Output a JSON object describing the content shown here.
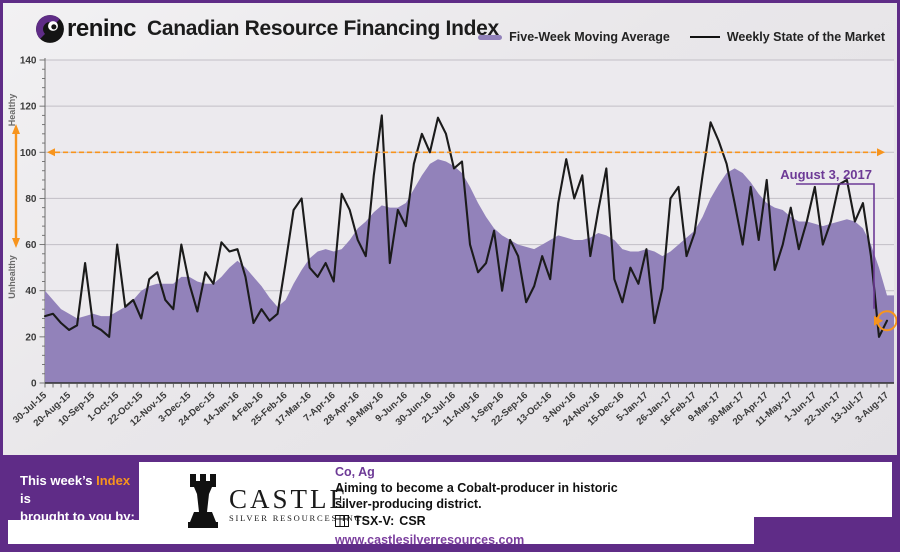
{
  "header": {
    "logo_text": "reninc",
    "title": "Canadian Resource Financing Index"
  },
  "legend": {
    "ma_label": "Five-Week Moving Average",
    "weekly_label": "Weekly State of the Market"
  },
  "axis": {
    "healthy_label": "Healthy",
    "unhealthy_label": "Unhealthy"
  },
  "annotation": {
    "label": "August 3, 2017"
  },
  "colors": {
    "brand_purple": "#5f2c87",
    "area_purple": "#9282ba",
    "line_black": "#1b1b1b",
    "accent_orange": "#f7941d",
    "annotation_purple": "#6d3a96"
  },
  "chart_data": {
    "type": "area+line",
    "title": "Oreninc Canadian Resource Financing Index",
    "ylim": [
      0,
      140
    ],
    "y_tick_step": 20,
    "reference_line_y": 100,
    "label_every_n_weeks": 3,
    "x_tick_labels": [
      "30-Jul-15",
      "20-Aug-15",
      "10-Sep-15",
      "1-Oct-15",
      "22-Oct-15",
      "12-Nov-15",
      "3-Dec-15",
      "24-Dec-15",
      "14-Jan-16",
      "4-Feb-16",
      "25-Feb-16",
      "17-Mar-16",
      "7-Apr-16",
      "28-Apr-16",
      "19-May-16",
      "9-Jun-16",
      "30-Jun-16",
      "21-Jul-16",
      "11-Aug-16",
      "1-Sep-16",
      "22-Sep-16",
      "13-Oct-16",
      "3-Nov-16",
      "24-Nov-16",
      "15-Dec-16",
      "5-Jan-17",
      "26-Jan-17",
      "16-Feb-17",
      "9-Mar-17",
      "30-Mar-17",
      "20-Apr-17",
      "11-May-17",
      "1-Jun-17",
      "22-Jun-17",
      "13-Jul-17",
      "3-Aug-17"
    ],
    "series": [
      {
        "name": "Five-Week Moving Average",
        "type": "area",
        "color": "#9282ba",
        "values": [
          40,
          36,
          32,
          30,
          28,
          29,
          30,
          29,
          29,
          31,
          33,
          36,
          40,
          42,
          43,
          43,
          43,
          46,
          46,
          44,
          43,
          43,
          46,
          50,
          53,
          50,
          46,
          42,
          37,
          33,
          36,
          43,
          49,
          54,
          57,
          58,
          57,
          58,
          62,
          67,
          70,
          74,
          77,
          76,
          76,
          78,
          84,
          90,
          95,
          97,
          96,
          94,
          91,
          85,
          78,
          72,
          67,
          64,
          62,
          60,
          59,
          58,
          60,
          62,
          64,
          63,
          62,
          62,
          63,
          65,
          64,
          62,
          58,
          57,
          57,
          58,
          57,
          55,
          57,
          60,
          63,
          66,
          72,
          80,
          86,
          91,
          93,
          91,
          87,
          82,
          78,
          76,
          75,
          72,
          70,
          70,
          69,
          68,
          69,
          70,
          71,
          70,
          67,
          60,
          50,
          38
        ]
      },
      {
        "name": "Weekly State of the Market",
        "type": "line",
        "color": "#1b1b1b",
        "values": [
          29,
          30,
          26,
          23,
          25,
          52,
          25,
          23,
          20,
          60,
          33,
          36,
          28,
          45,
          48,
          36,
          32,
          60,
          43,
          31,
          48,
          43,
          61,
          57,
          58,
          46,
          26,
          32,
          27,
          30,
          52,
          75,
          80,
          50,
          46,
          52,
          44,
          82,
          75,
          62,
          55,
          90,
          116,
          52,
          75,
          68,
          95,
          108,
          100,
          115,
          108,
          93,
          96,
          60,
          48,
          52,
          66,
          40,
          62,
          55,
          35,
          42,
          55,
          45,
          78,
          97,
          80,
          90,
          55,
          75,
          93,
          45,
          35,
          50,
          43,
          58,
          26,
          41,
          80,
          85,
          55,
          65,
          90,
          113,
          105,
          95,
          78,
          60,
          85,
          62,
          88,
          49,
          60,
          76,
          58,
          70,
          85,
          60,
          70,
          86,
          88,
          70,
          78,
          55,
          20,
          27
        ]
      }
    ],
    "highlight_last_point": {
      "index": 105,
      "value": 27,
      "label": "August 3, 2017"
    }
  },
  "footer": {
    "sponsor": {
      "prefix": "This week’s ",
      "highlight": "Index",
      "suffix": " is",
      "line2": "brought to you by:"
    },
    "castle": {
      "name": "CASTLE",
      "subtitle": "SILVER RESOURCES INC."
    },
    "commodities": "Co, Ag",
    "description_line1": "Aiming to become a Cobalt-producer in historic",
    "description_line2": "silver-producing district.",
    "ticker_exchange": "TSX-V:",
    "ticker_symbol": "CSR",
    "website": "www.castlesilverresources.com"
  }
}
